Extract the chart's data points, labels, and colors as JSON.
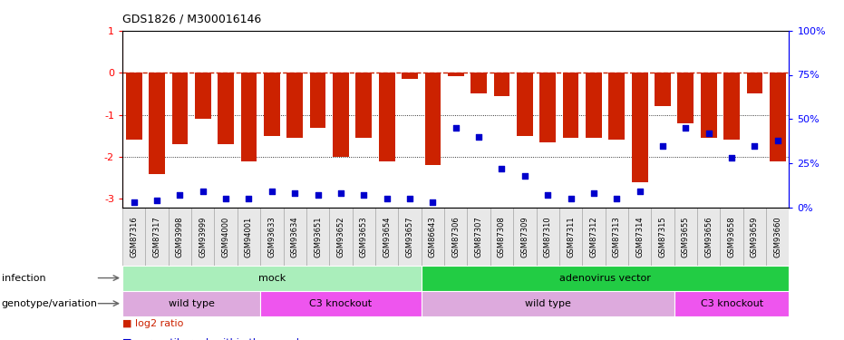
{
  "title": "GDS1826 / M300016146",
  "samples": [
    "GSM87316",
    "GSM87317",
    "GSM93998",
    "GSM93999",
    "GSM94000",
    "GSM94001",
    "GSM93633",
    "GSM93634",
    "GSM93651",
    "GSM93652",
    "GSM93653",
    "GSM93654",
    "GSM93657",
    "GSM86643",
    "GSM87306",
    "GSM87307",
    "GSM87308",
    "GSM87309",
    "GSM87310",
    "GSM87311",
    "GSM87312",
    "GSM87313",
    "GSM87314",
    "GSM87315",
    "GSM93655",
    "GSM93656",
    "GSM93658",
    "GSM93659",
    "GSM93660"
  ],
  "log2_ratio": [
    -1.6,
    -2.4,
    -1.7,
    -1.1,
    -1.7,
    -2.1,
    -1.5,
    -1.55,
    -1.3,
    -2.0,
    -1.55,
    -2.1,
    -0.15,
    -2.2,
    -0.08,
    -0.5,
    -0.55,
    -1.5,
    -1.65,
    -1.55,
    -1.55,
    -1.6,
    -2.6,
    -0.8,
    -1.2,
    -1.55,
    -1.6,
    -0.5,
    -2.1
  ],
  "percentile": [
    3,
    4,
    7,
    9,
    5,
    5,
    9,
    8,
    7,
    8,
    7,
    5,
    5,
    3,
    45,
    40,
    22,
    18,
    7,
    5,
    8,
    5,
    9,
    35,
    45,
    42,
    28,
    35,
    38
  ],
  "infection_groups": [
    {
      "label": "mock",
      "start": 0,
      "end": 13,
      "color": "#AAEEBB"
    },
    {
      "label": "adenovirus vector",
      "start": 13,
      "end": 29,
      "color": "#22CC44"
    }
  ],
  "genotype_groups": [
    {
      "label": "wild type",
      "start": 0,
      "end": 6,
      "color": "#DDAADD"
    },
    {
      "label": "C3 knockout",
      "start": 6,
      "end": 13,
      "color": "#EE55EE"
    },
    {
      "label": "wild type",
      "start": 13,
      "end": 24,
      "color": "#DDAADD"
    },
    {
      "label": "C3 knockout",
      "start": 24,
      "end": 29,
      "color": "#EE55EE"
    }
  ],
  "bar_color": "#CC2200",
  "dot_color": "#0000CC",
  "dashed_color": "#CC2200",
  "ylim_left": [
    -3.2,
    1.0
  ],
  "ylim_right": [
    0,
    100
  ],
  "yticks_left": [
    1,
    0,
    -1,
    -2,
    -3
  ],
  "yticks_right": [
    0,
    25,
    50,
    75,
    100
  ],
  "right_tick_labels": [
    "0%",
    "25%",
    "50%",
    "75%",
    "100%"
  ]
}
